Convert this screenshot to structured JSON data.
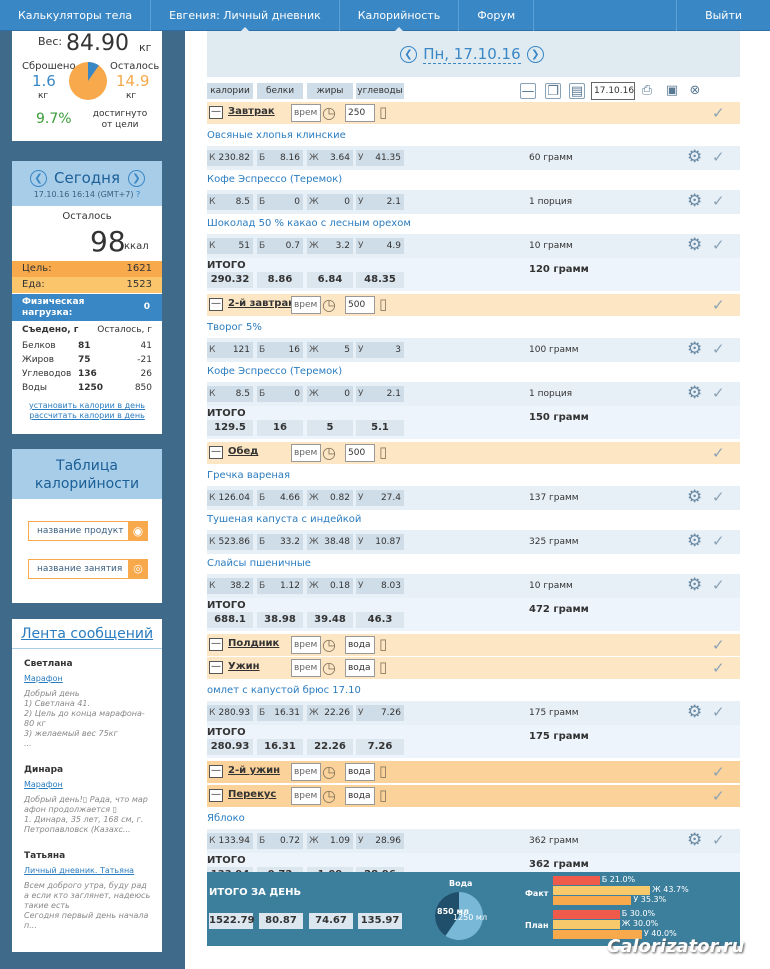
{
  "nav": {
    "items": [
      "Калькуляторы тела",
      "Евгения: Личный дневник",
      "Калорийность",
      "Форум"
    ],
    "exit": "Выйти"
  },
  "weight": {
    "label": "Вес:",
    "value": "84.90",
    "unit": "кг",
    "lost_label": "Сброшено",
    "lost_value": "1.6",
    "lost_unit": "кг",
    "left_label": "Осталось",
    "left_value": "14.9",
    "left_unit": "кг",
    "percent": "9.7%",
    "goal_label": "достигнуто от цели"
  },
  "today": {
    "title": "Сегодня",
    "date": "17.10.16 16:14 (GMT+7)",
    "help": "?",
    "left_label": "Осталось",
    "left_value": "98",
    "left_unit": "ккал",
    "goal_label": "Цель:",
    "goal_value": "1621",
    "food_label": "Еда:",
    "food_value": "1523",
    "activity_label": "Физическая нагрузка:",
    "activity_value": "0",
    "eaten_head": "Съедено, г",
    "left_head": "Осталось, г",
    "rows": [
      {
        "name": "Белков",
        "eaten": "81",
        "left": "41"
      },
      {
        "name": "Жиров",
        "eaten": "75",
        "left": "-21"
      },
      {
        "name": "Углеводов",
        "eaten": "136",
        "left": "26"
      },
      {
        "name": "Воды",
        "eaten": "1250",
        "left": "850"
      }
    ],
    "link1": "установить калории в день",
    "link2": "рассчитать калории в день"
  },
  "table": {
    "title": "Таблица калорийности",
    "product": "название продукт",
    "activity": "название занятия"
  },
  "feed": {
    "title": "Лента сообщений",
    "posts": [
      {
        "author": "Светлана",
        "link": "Марафон",
        "lines": [
          "Добрый день",
          "1) Светлана 41.",
          "2) Цель до конца марафона-",
          "80 кг",
          "3) желаемый вес 75кг",
          "..."
        ]
      },
      {
        "author": "Динара",
        "link": "Марафон",
        "lines": [
          "Добрый день!▯ Рада, что мар",
          "афон продолжается ▯",
          "1. Динара, 35 лет, 168 см, г.",
          "Петропавловск (Казахс..."
        ]
      },
      {
        "author": "Татьяна",
        "link": "Личный дневник. Татьяна",
        "lines": [
          "Всем доброго утра, буду рад",
          "а если кто заглянет, надеюсь",
          "такие есть",
          "Сегодня первый день начала",
          "п..."
        ]
      }
    ]
  },
  "diary": {
    "date": "Пн, 17.10.16",
    "date_input": "17.10.16",
    "headers": [
      "калории",
      "белки",
      "жиры",
      "углеводы"
    ],
    "meals": [
      {
        "name": "Завтрак",
        "time": "врем",
        "water": "250",
        "foods": [
          {
            "name": "Овсяные хлопья клинские",
            "k": "230.82",
            "b": "8.16",
            "j": "3.64",
            "u": "41.35",
            "amount": "60 грамм"
          },
          {
            "name": "Кофе Эспрессо (Теремок)",
            "k": "8.5",
            "b": "0",
            "j": "0",
            "u": "2.1",
            "amount": "1 порция"
          },
          {
            "name": "Шоколад 50 % какао с лесным орехом",
            "k": "51",
            "b": "0.7",
            "j": "3.2",
            "u": "4.9",
            "amount": "10 грамм"
          }
        ],
        "total": {
          "k": "290.32",
          "b": "8.86",
          "j": "6.84",
          "u": "48.35",
          "amount": "120 грамм"
        }
      },
      {
        "name": "2-й завтрак",
        "time": "врем",
        "water": "500",
        "foods": [
          {
            "name": "Творог 5%",
            "k": "121",
            "b": "16",
            "j": "5",
            "u": "3",
            "amount": "100 грамм"
          },
          {
            "name": "Кофе Эспрессо (Теремок)",
            "k": "8.5",
            "b": "0",
            "j": "0",
            "u": "2.1",
            "amount": "1 порция"
          }
        ],
        "total": {
          "k": "129.5",
          "b": "16",
          "j": "5",
          "u": "5.1",
          "amount": "150 грамм"
        }
      },
      {
        "name": "Обед",
        "time": "врем",
        "water": "500",
        "foods": [
          {
            "name": "Гречка вареная",
            "k": "126.04",
            "b": "4.66",
            "j": "0.82",
            "u": "27.4",
            "amount": "137 грамм"
          },
          {
            "name": "Тушеная капуста с индейкой",
            "k": "523.86",
            "b": "33.2",
            "j": "38.48",
            "u": "10.87",
            "amount": "325 грамм"
          },
          {
            "name": "Слайсы пшеничные",
            "k": "38.2",
            "b": "1.12",
            "j": "0.18",
            "u": "8.03",
            "amount": "10 грамм"
          }
        ],
        "total": {
          "k": "688.1",
          "b": "38.98",
          "j": "39.48",
          "u": "46.3",
          "amount": "472 грамм"
        }
      },
      {
        "name": "Полдник",
        "time": "врем",
        "water": "вода"
      },
      {
        "name": "Ужин",
        "time": "врем",
        "water": "вода",
        "foods": [
          {
            "name": "омлет с капустой брюс 17.10",
            "k": "280.93",
            "b": "16.31",
            "j": "22.26",
            "u": "7.26",
            "amount": "175 грамм"
          }
        ],
        "total": {
          "k": "280.93",
          "b": "16.31",
          "j": "22.26",
          "u": "7.26",
          "amount": "175 грамм"
        }
      },
      {
        "name": "2-й ужин",
        "time": "врем",
        "water": "вода"
      },
      {
        "name": "Перекус",
        "time": "врем",
        "water": "вода",
        "foods": [
          {
            "name": "Яблоко",
            "k": "133.94",
            "b": "0.72",
            "j": "1.09",
            "u": "28.96",
            "amount": "362 грамм"
          }
        ],
        "total": {
          "k": "133.94",
          "b": "0.72",
          "j": "1.09",
          "u": "28.96",
          "amount": "362 грамм"
        }
      }
    ],
    "total_label": "ИТОГО",
    "letters": {
      "k": "К",
      "b": "Б",
      "j": "Ж",
      "u": "У"
    }
  },
  "day_total": {
    "label": "ИТОГО ЗА ДЕНЬ",
    "k": "1522.79",
    "b": "80.87",
    "j": "74.67",
    "u": "135.97",
    "water_label": "Вода",
    "water_left": "850 мл",
    "water_drunk": "1250 мл",
    "fact_label": "Факт",
    "plan_label": "План",
    "fact": [
      {
        "label": "Б 21.0%",
        "pct": 21.0
      },
      {
        "label": "Ж 43.7%",
        "pct": 43.7
      },
      {
        "label": "У 35.3%",
        "pct": 35.3
      }
    ],
    "plan": [
      {
        "label": "Б 30.0%",
        "pct": 30.0
      },
      {
        "label": "Ж 30.0%",
        "pct": 30.0
      },
      {
        "label": "У 40.0%",
        "pct": 40.0
      }
    ]
  },
  "watermark": "Calorizator.ru",
  "colors": {
    "nav": "#3a87c6",
    "meal": "#fde6c4",
    "goal": "#f7a94b",
    "food": "#fbc56c",
    "activity": "#3a87c6"
  }
}
